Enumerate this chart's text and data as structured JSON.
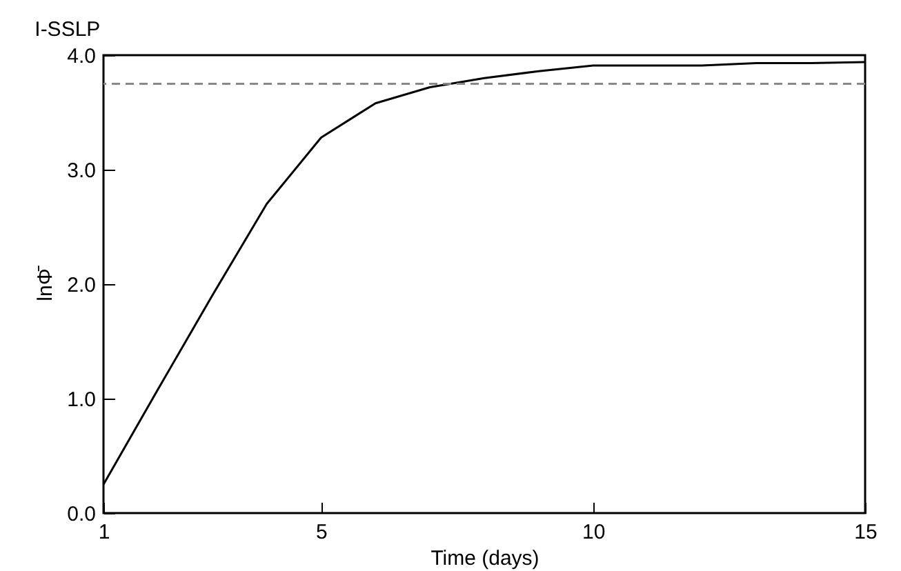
{
  "chart_data": {
    "type": "line",
    "title": "I-SSLP",
    "xlabel": "Time (days)",
    "ylabel": "lnΦ̄",
    "x": [
      1,
      2,
      3,
      4,
      5,
      6,
      7,
      8,
      9,
      10,
      11,
      12,
      13,
      14,
      15
    ],
    "series": [
      {
        "color": "#000000",
        "values": [
          0.25,
          1.08,
          1.9,
          2.7,
          3.28,
          3.58,
          3.72,
          3.8,
          3.86,
          3.91,
          3.91,
          3.91,
          3.93,
          3.93,
          3.94
        ]
      }
    ],
    "xlim": [
      1,
      15
    ],
    "xticks": [
      1,
      5,
      10,
      15
    ],
    "ylim": [
      0,
      4
    ],
    "yticks": [
      {
        "value": 0,
        "label": "0.0"
      },
      {
        "value": 1,
        "label": "1.0"
      },
      {
        "value": 2,
        "label": "2.0"
      },
      {
        "value": 3,
        "label": "3.0"
      },
      {
        "value": 4,
        "label": "4.0"
      }
    ],
    "ref_lines": [
      {
        "axis": "y",
        "value": 3.75,
        "color": "#888888",
        "line_style": "dashed"
      }
    ],
    "grid": false,
    "line_style": "solid",
    "marker": "none"
  }
}
